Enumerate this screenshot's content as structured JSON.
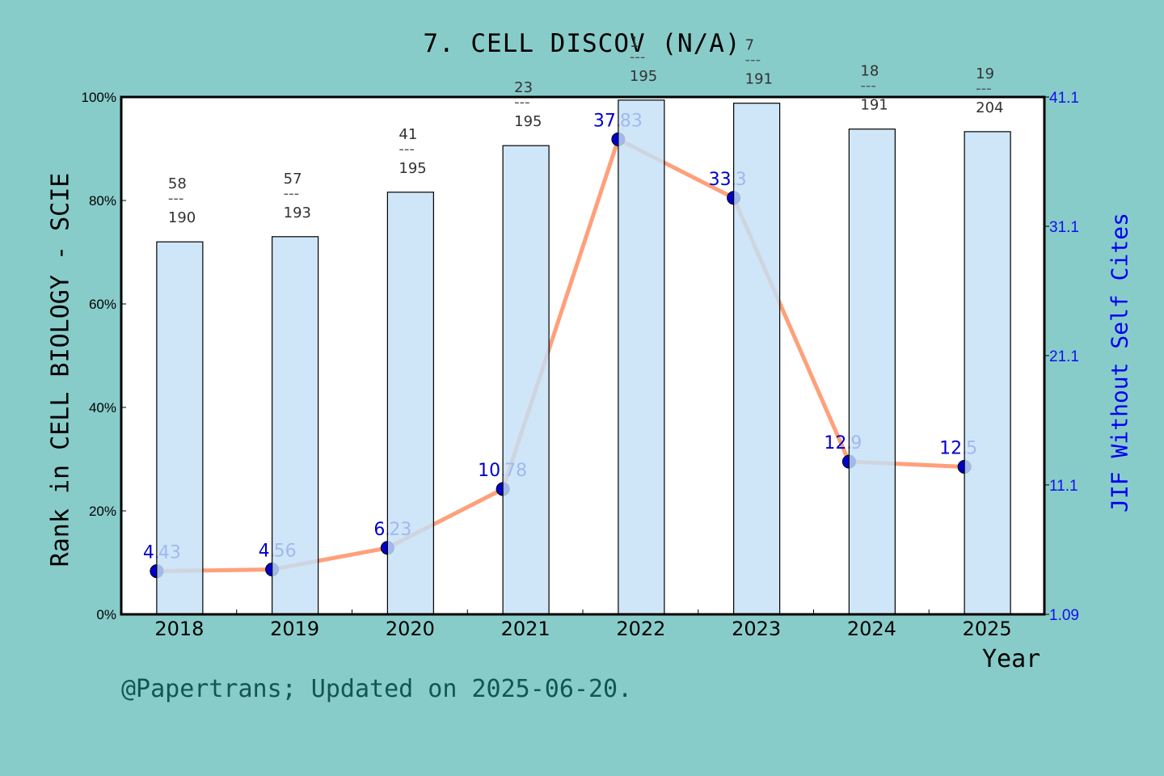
{
  "title": "7. CELL DISCOV (N/A)",
  "left_axis_label": "Rank in CELL BIOLOGY - SCIE",
  "right_axis_label": "JIF Without Self Cites",
  "x_axis_label": "Year",
  "footer": "@Papertrans; Updated on 2025-06-20.",
  "colors": {
    "background": "#88CCCA",
    "plot_bg": "#FFFFFF",
    "bar_fill": "#C4E0F7",
    "line": "#FFA07A",
    "marker": "#0000CC",
    "right_axis": "#1010EE"
  },
  "left_ticks": [
    "0%",
    "20%",
    "40%",
    "60%",
    "80%",
    "100%"
  ],
  "right_ticks": [
    "1.09",
    "11.1",
    "21.1",
    "31.1",
    "41.1"
  ],
  "chart_data": {
    "type": "bar+line",
    "title": "7. CELL DISCOV (N/A)",
    "xlabel": "Year",
    "ylabel": "Rank in CELL BIOLOGY - SCIE",
    "y2label": "JIF Without Self Cites",
    "categories": [
      "2018",
      "2019",
      "2020",
      "2021",
      "2022",
      "2023",
      "2024",
      "2025"
    ],
    "ylim": [
      0,
      100
    ],
    "y2lim": [
      1.09,
      41.1
    ],
    "series": [
      {
        "name": "Rank percentile (bar)",
        "axis": "left",
        "type": "bar",
        "values": [
          72.0,
          73.0,
          81.6,
          90.6,
          99.4,
          98.8,
          93.8,
          93.3
        ]
      },
      {
        "name": "JIF Without Self Cites",
        "axis": "right",
        "type": "line",
        "values": [
          4.43,
          4.56,
          6.23,
          10.78,
          37.83,
          33.3,
          12.9,
          12.5
        ]
      }
    ],
    "rank_labels": [
      {
        "rank": "58",
        "total": "190"
      },
      {
        "rank": "57",
        "total": "193"
      },
      {
        "rank": "41",
        "total": "195"
      },
      {
        "rank": "23",
        "total": "195"
      },
      {
        "rank": "1",
        "total": "195"
      },
      {
        "rank": "7",
        "total": "191"
      },
      {
        "rank": "18",
        "total": "191"
      },
      {
        "rank": "19",
        "total": "204"
      }
    ],
    "value_labels": [
      {
        "int": "4.",
        "frac": "43"
      },
      {
        "int": "4.",
        "frac": "56"
      },
      {
        "int": "6.",
        "frac": "23"
      },
      {
        "int": "10.",
        "frac": "78"
      },
      {
        "int": "37.",
        "frac": "83"
      },
      {
        "int": "33.",
        "frac": "3"
      },
      {
        "int": "12.",
        "frac": "9"
      },
      {
        "int": "12.",
        "frac": "5"
      }
    ],
    "grid": false,
    "legend": "none"
  }
}
